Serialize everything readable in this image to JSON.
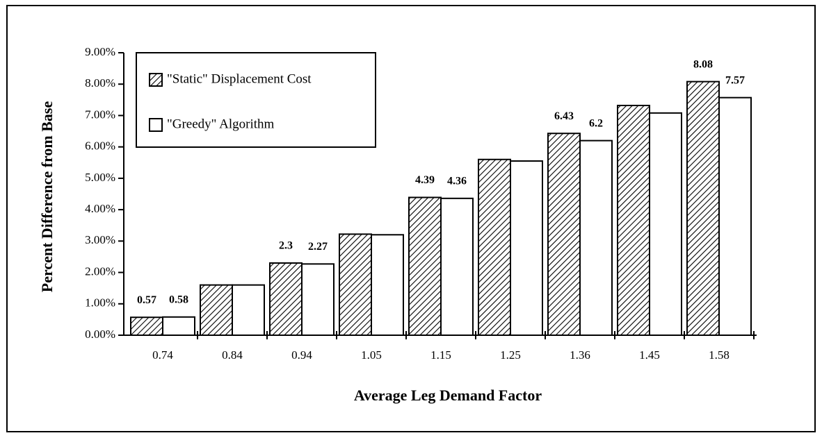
{
  "chart_data": {
    "type": "bar",
    "x_label": "Average Leg Demand Factor",
    "y_label": "Percent Difference from Base",
    "categories": [
      "0.74",
      "0.84",
      "0.94",
      "1.05",
      "1.15",
      "1.25",
      "1.36",
      "1.45",
      "1.58"
    ],
    "series": [
      {
        "name": "\"Static\" Displacement Cost",
        "color": "#000000",
        "hatch": true,
        "values": [
          0.57,
          1.6,
          2.3,
          3.22,
          4.39,
          5.6,
          6.43,
          7.32,
          8.08
        ],
        "value_labels": [
          "0.57",
          null,
          "2.3",
          null,
          "4.39",
          null,
          "6.43",
          null,
          "8.08"
        ]
      },
      {
        "name": "\"Greedy\" Algorithm",
        "color": "#000000",
        "hatch": false,
        "values": [
          0.58,
          1.6,
          2.27,
          3.2,
          4.36,
          5.55,
          6.2,
          7.08,
          7.57
        ],
        "value_labels": [
          "0.58",
          null,
          "2.27",
          null,
          "4.36",
          null,
          "6.2",
          null,
          "7.57"
        ]
      }
    ],
    "ylim": [
      0,
      9
    ],
    "yticks": [
      {
        "value": 0,
        "label": "0.00%"
      },
      {
        "value": 1,
        "label": "1.00%"
      },
      {
        "value": 2,
        "label": "2.00%"
      },
      {
        "value": 3,
        "label": "3.00%"
      },
      {
        "value": 4,
        "label": "4.00%"
      },
      {
        "value": 5,
        "label": "5.00%"
      },
      {
        "value": 6,
        "label": "6.00%"
      },
      {
        "value": 7,
        "label": "7.00%"
      },
      {
        "value": 8,
        "label": "8.00%"
      },
      {
        "value": 9,
        "label": "9.00%"
      }
    ],
    "grid": false,
    "legend": "upper left"
  }
}
